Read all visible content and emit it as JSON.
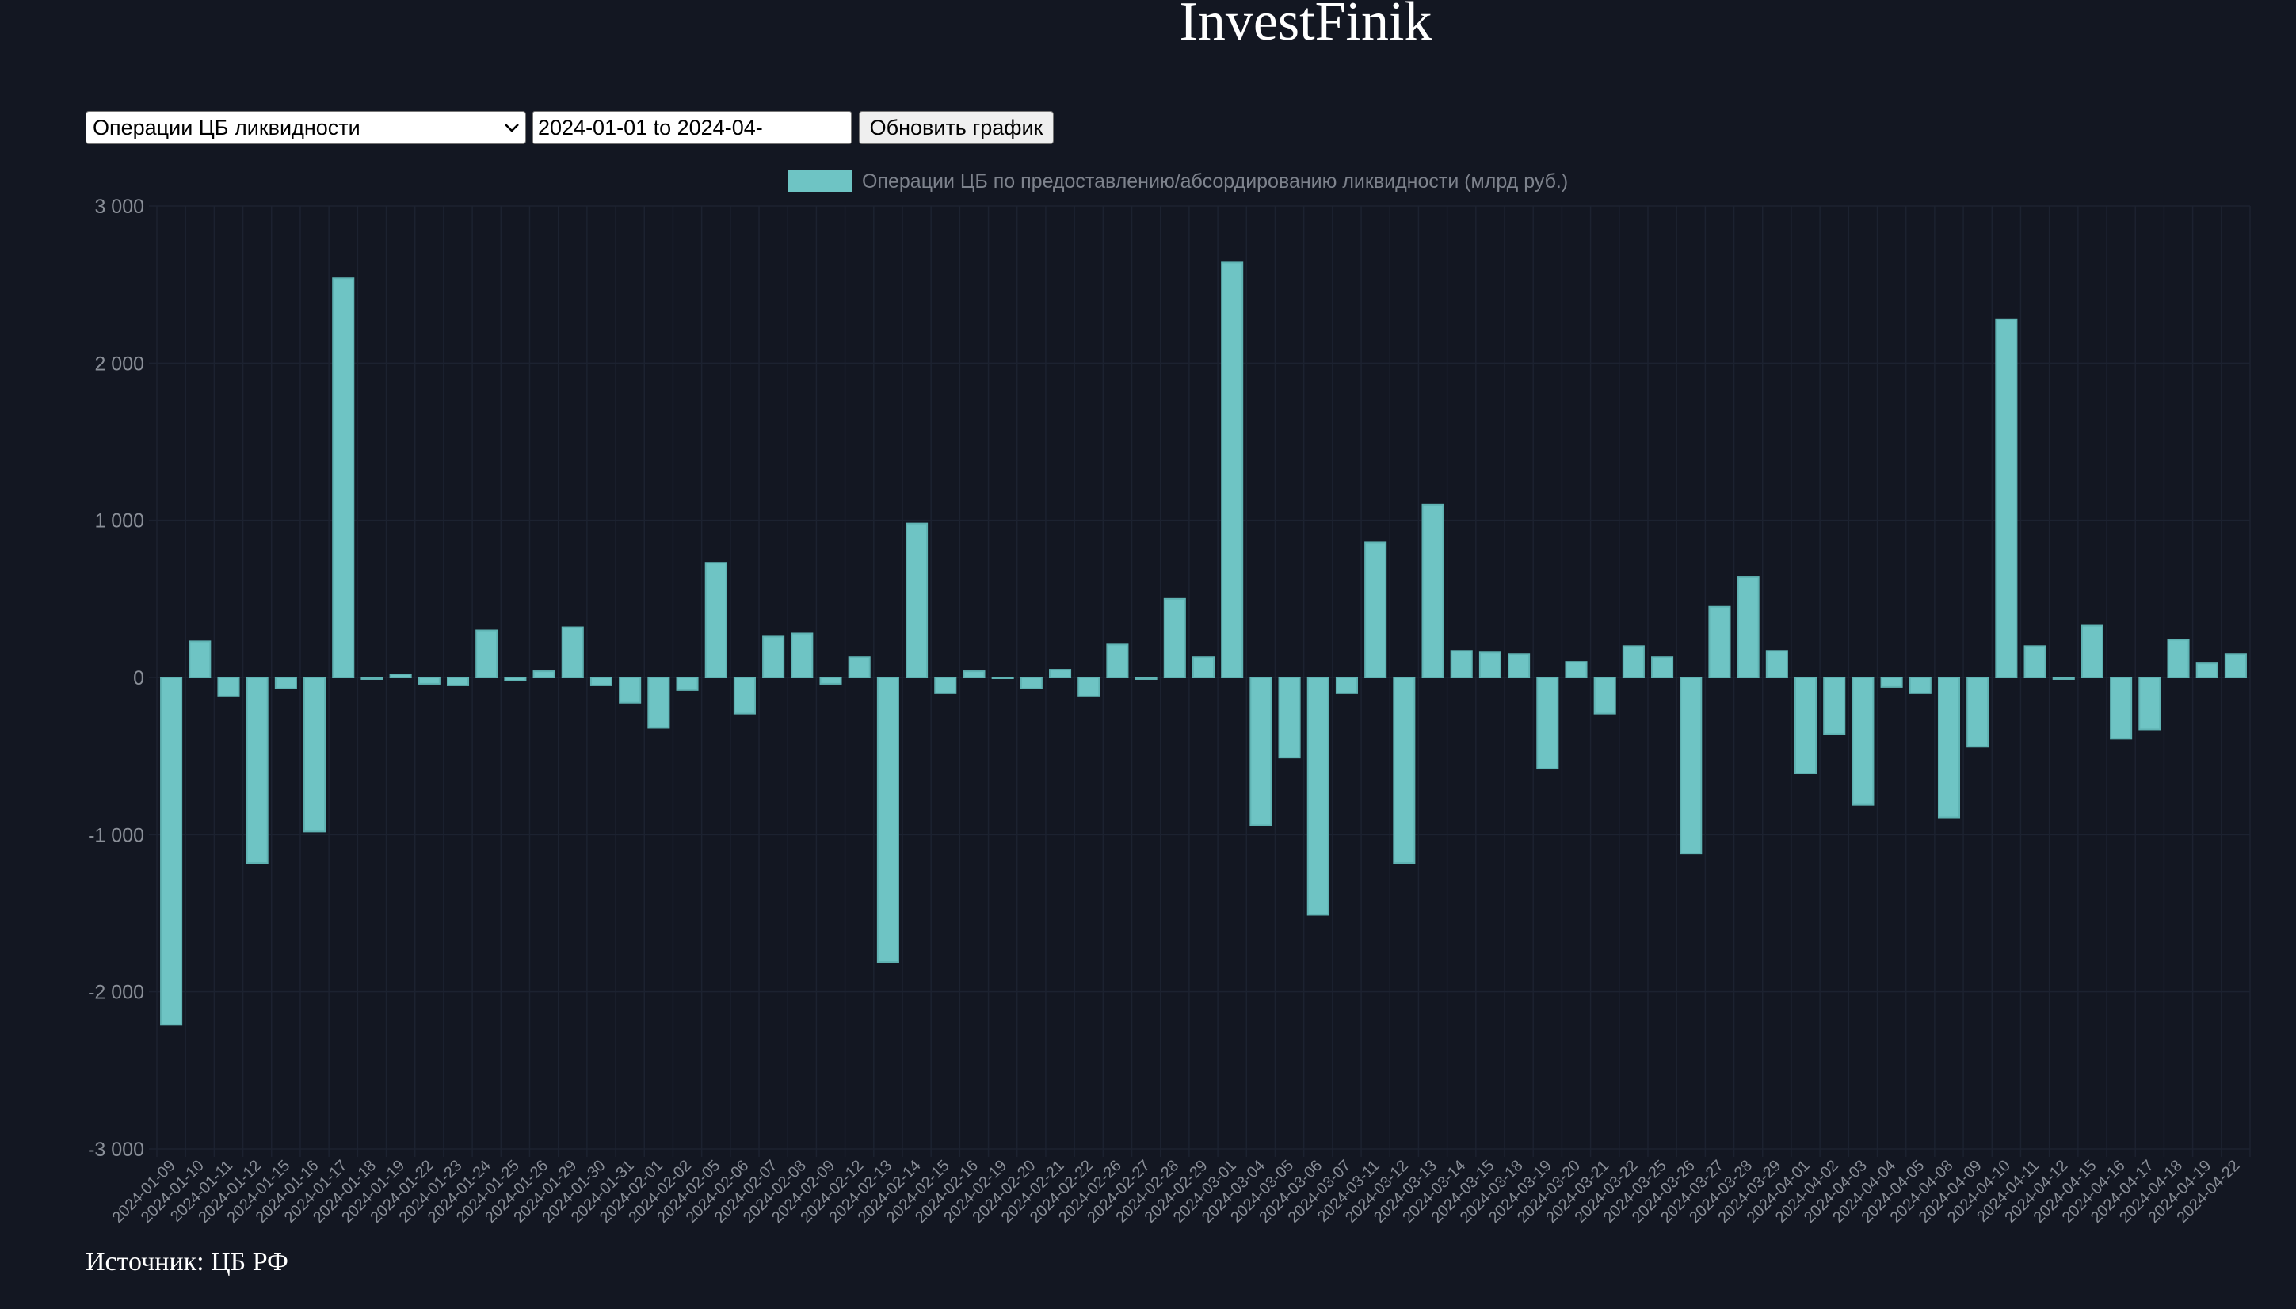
{
  "site": {
    "title": "InvestFinik"
  },
  "controls": {
    "metric_select_value": "Операции ЦБ ликвидности",
    "date_range_value": "2024-01-01 to 2024-04-",
    "update_button_label": "Обновить график"
  },
  "footer": {
    "source_text": "Источник: ЦБ РФ"
  },
  "colors": {
    "background": "#131722",
    "bar_fill": "#6ec4c4",
    "bar_border": "#5fb3b3",
    "grid": "#1c2230",
    "tick_text": "#8a8f98",
    "legend_text": "#7d828c"
  },
  "chart_data": {
    "type": "bar",
    "legend": {
      "label": "Операции ЦБ по предоставлению/абсордированию ликвидности (млрд руб.)",
      "position": "top"
    },
    "ylim": [
      -3000,
      3000
    ],
    "yticks": [
      3000,
      2000,
      1000,
      0,
      -1000,
      -2000,
      -3000
    ],
    "ytick_labels": [
      "3 000",
      "2 000",
      "1 000",
      "0",
      "-1 000",
      "-2 000",
      "-3 000"
    ],
    "grid": true,
    "categories": [
      "2024-01-09",
      "2024-01-10",
      "2024-01-11",
      "2024-01-12",
      "2024-01-15",
      "2024-01-16",
      "2024-01-17",
      "2024-01-18",
      "2024-01-19",
      "2024-01-22",
      "2024-01-23",
      "2024-01-24",
      "2024-01-25",
      "2024-01-26",
      "2024-01-29",
      "2024-01-30",
      "2024-01-31",
      "2024-02-01",
      "2024-02-02",
      "2024-02-05",
      "2024-02-06",
      "2024-02-07",
      "2024-02-08",
      "2024-02-09",
      "2024-02-12",
      "2024-02-13",
      "2024-02-14",
      "2024-02-15",
      "2024-02-16",
      "2024-02-19",
      "2024-02-20",
      "2024-02-21",
      "2024-02-22",
      "2024-02-26",
      "2024-02-27",
      "2024-02-28",
      "2024-02-29",
      "2024-03-01",
      "2024-03-04",
      "2024-03-05",
      "2024-03-06",
      "2024-03-07",
      "2024-03-11",
      "2024-03-12",
      "2024-03-13",
      "2024-03-14",
      "2024-03-15",
      "2024-03-18",
      "2024-03-19",
      "2024-03-20",
      "2024-03-21",
      "2024-03-22",
      "2024-03-25",
      "2024-03-26",
      "2024-03-27",
      "2024-03-28",
      "2024-03-29",
      "2024-04-01",
      "2024-04-02",
      "2024-04-03",
      "2024-04-04",
      "2024-04-05",
      "2024-04-08",
      "2024-04-09",
      "2024-04-10",
      "2024-04-11",
      "2024-04-12",
      "2024-04-15",
      "2024-04-16",
      "2024-04-17",
      "2024-04-18",
      "2024-04-19",
      "2024-04-22"
    ],
    "values": [
      -2210,
      230,
      -120,
      -1180,
      -70,
      -980,
      2540,
      -10,
      20,
      -40,
      -50,
      300,
      -20,
      40,
      320,
      -50,
      -160,
      -320,
      -80,
      730,
      -230,
      260,
      280,
      -40,
      130,
      -1810,
      980,
      -100,
      40,
      0,
      -70,
      50,
      -120,
      210,
      -10,
      500,
      130,
      2640,
      -940,
      -510,
      -1510,
      -100,
      860,
      -1180,
      1100,
      170,
      160,
      150,
      -580,
      100,
      -230,
      200,
      130,
      -1120,
      450,
      640,
      170,
      -610,
      -360,
      -810,
      -60,
      -100,
      -890,
      -440,
      2280,
      200,
      -10,
      330,
      -390,
      -330,
      240,
      90,
      150
    ]
  }
}
